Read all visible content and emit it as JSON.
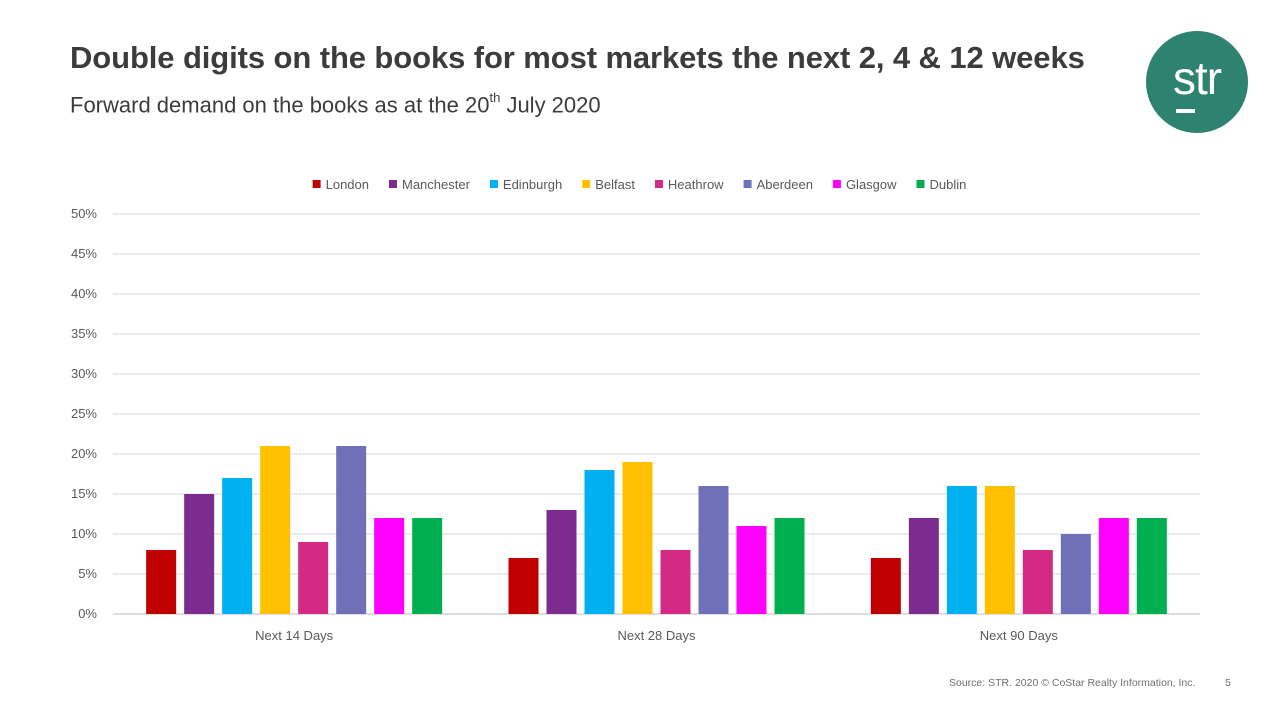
{
  "slide": {
    "title": "Double digits on the books for most markets the next 2, 4 & 12 weeks",
    "subtitle_before": "Forward demand on the books as at the 20",
    "subtitle_sup": "th",
    "subtitle_after": " July 2020",
    "logo_text": "str",
    "source": "Source: STR. 2020 © CoStar Realty Information, Inc.",
    "page_number": "5"
  },
  "chart_data": {
    "type": "bar",
    "title": "",
    "xlabel": "",
    "ylabel": "",
    "ylim": [
      0,
      50
    ],
    "y_ticks": [
      "0%",
      "5%",
      "10%",
      "15%",
      "20%",
      "25%",
      "30%",
      "35%",
      "40%",
      "45%",
      "50%"
    ],
    "grid": true,
    "legend_position": "top",
    "categories": [
      "Next 14 Days",
      "Next 28 Days",
      "Next 90 Days"
    ],
    "series": [
      {
        "name": "London",
        "color": "#c00000",
        "values": [
          8,
          7,
          7
        ]
      },
      {
        "name": "Manchester",
        "color": "#7b2c8e",
        "values": [
          15,
          13,
          12
        ]
      },
      {
        "name": "Edinburgh",
        "color": "#00b0f0",
        "values": [
          17,
          18,
          16
        ]
      },
      {
        "name": "Belfast",
        "color": "#ffc000",
        "values": [
          21,
          19,
          16
        ]
      },
      {
        "name": "Heathrow",
        "color": "#d42a85",
        "values": [
          9,
          8,
          8
        ]
      },
      {
        "name": "Aberdeen",
        "color": "#7070b8",
        "values": [
          21,
          16,
          10
        ]
      },
      {
        "name": "Glasgow",
        "color": "#ff00ff",
        "values": [
          12,
          11,
          12
        ]
      },
      {
        "name": "Dublin",
        "color": "#00b050",
        "values": [
          12,
          12,
          12
        ]
      }
    ]
  }
}
